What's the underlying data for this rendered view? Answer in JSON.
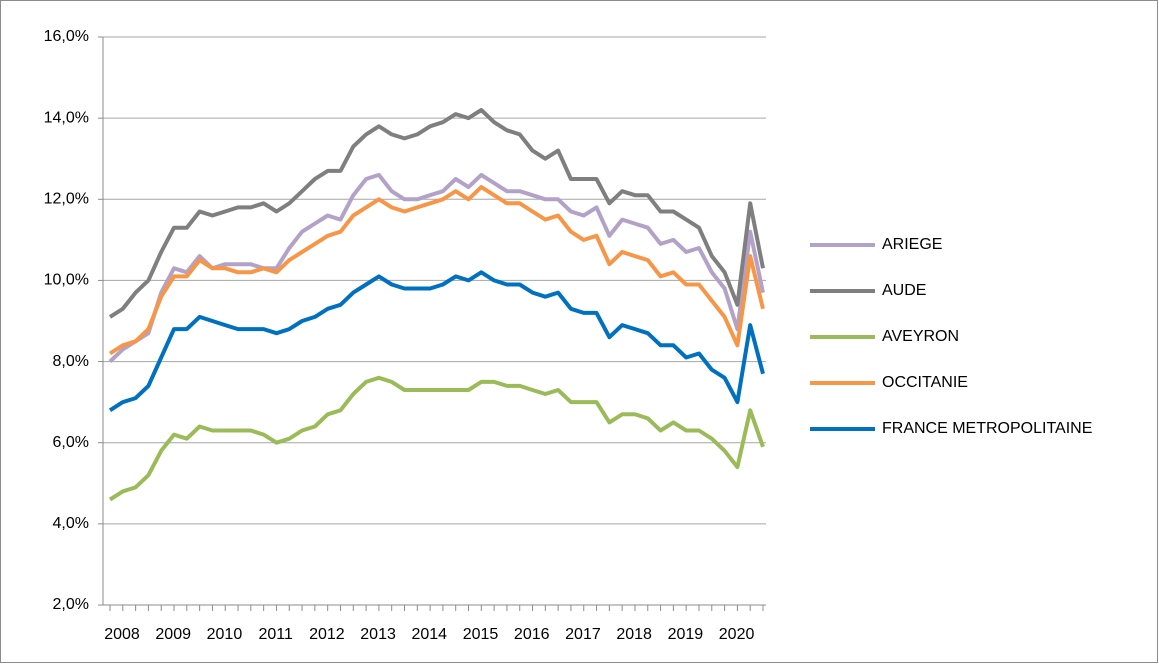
{
  "chart_data": {
    "type": "line",
    "categories": [
      "2008",
      null,
      null,
      null,
      "2009",
      null,
      null,
      null,
      "2010",
      null,
      null,
      null,
      "2011",
      null,
      null,
      null,
      "2012",
      null,
      null,
      null,
      "2013",
      null,
      null,
      null,
      "2014",
      null,
      null,
      null,
      "2015",
      null,
      null,
      null,
      "2016",
      null,
      null,
      null,
      "2017",
      null,
      null,
      null,
      "2018",
      null,
      null,
      null,
      "2019",
      null,
      null,
      null,
      "2020",
      null,
      null,
      null
    ],
    "series": [
      {
        "name": "ARIEGE",
        "color": "#b3a2c7",
        "values": [
          8.0,
          8.3,
          8.5,
          8.7,
          9.7,
          10.3,
          10.2,
          10.6,
          10.3,
          10.4,
          10.4,
          10.4,
          10.3,
          10.3,
          10.8,
          11.2,
          11.4,
          11.6,
          11.5,
          12.1,
          12.5,
          12.6,
          12.2,
          12.0,
          12.0,
          12.1,
          12.2,
          12.5,
          12.3,
          12.6,
          12.4,
          12.2,
          12.2,
          12.1,
          12.0,
          12.0,
          11.7,
          11.6,
          11.8,
          11.1,
          11.5,
          11.4,
          11.3,
          10.9,
          11.0,
          10.7,
          10.8,
          10.2,
          9.8,
          8.8,
          11.2,
          9.7
        ]
      },
      {
        "name": "AUDE",
        "color": "#7f7f7f",
        "values": [
          9.1,
          9.3,
          9.7,
          10.0,
          10.7,
          11.3,
          11.3,
          11.7,
          11.6,
          11.7,
          11.8,
          11.8,
          11.9,
          11.7,
          11.9,
          12.2,
          12.5,
          12.7,
          12.7,
          13.3,
          13.6,
          13.8,
          13.6,
          13.5,
          13.6,
          13.8,
          13.9,
          14.1,
          14.0,
          14.2,
          13.9,
          13.7,
          13.6,
          13.2,
          13.0,
          13.2,
          12.5,
          12.5,
          12.5,
          11.9,
          12.2,
          12.1,
          12.1,
          11.7,
          11.7,
          11.5,
          11.3,
          10.6,
          10.2,
          9.4,
          11.9,
          10.3
        ]
      },
      {
        "name": "AVEYRON",
        "color": "#9bbb59",
        "values": [
          4.6,
          4.8,
          4.9,
          5.2,
          5.8,
          6.2,
          6.1,
          6.4,
          6.3,
          6.3,
          6.3,
          6.3,
          6.2,
          6.0,
          6.1,
          6.3,
          6.4,
          6.7,
          6.8,
          7.2,
          7.5,
          7.6,
          7.5,
          7.3,
          7.3,
          7.3,
          7.3,
          7.3,
          7.3,
          7.5,
          7.5,
          7.4,
          7.4,
          7.3,
          7.2,
          7.3,
          7.0,
          7.0,
          7.0,
          6.5,
          6.7,
          6.7,
          6.6,
          6.3,
          6.5,
          6.3,
          6.3,
          6.1,
          5.8,
          5.4,
          6.8,
          5.9
        ]
      },
      {
        "name": "OCCITANIE",
        "color": "#f79646",
        "values": [
          8.2,
          8.4,
          8.5,
          8.8,
          9.6,
          10.1,
          10.1,
          10.5,
          10.3,
          10.3,
          10.2,
          10.2,
          10.3,
          10.2,
          10.5,
          10.7,
          10.9,
          11.1,
          11.2,
          11.6,
          11.8,
          12.0,
          11.8,
          11.7,
          11.8,
          11.9,
          12.0,
          12.2,
          12.0,
          12.3,
          12.1,
          11.9,
          11.9,
          11.7,
          11.5,
          11.6,
          11.2,
          11.0,
          11.1,
          10.4,
          10.7,
          10.6,
          10.5,
          10.1,
          10.2,
          9.9,
          9.9,
          9.5,
          9.1,
          8.4,
          10.6,
          9.3
        ]
      },
      {
        "name": "FRANCE METROPOLITAINE",
        "color": "#0070c0",
        "values": [
          6.8,
          7.0,
          7.1,
          7.4,
          8.1,
          8.8,
          8.8,
          9.1,
          9.0,
          8.9,
          8.8,
          8.8,
          8.8,
          8.7,
          8.8,
          9.0,
          9.1,
          9.3,
          9.4,
          9.7,
          9.9,
          10.1,
          9.9,
          9.8,
          9.8,
          9.8,
          9.9,
          10.1,
          10.0,
          10.2,
          10.0,
          9.9,
          9.9,
          9.7,
          9.6,
          9.7,
          9.3,
          9.2,
          9.2,
          8.6,
          8.9,
          8.8,
          8.7,
          8.4,
          8.4,
          8.1,
          8.2,
          7.8,
          7.6,
          7.0,
          8.9,
          7.7
        ]
      }
    ],
    "ylim": [
      2,
      16
    ],
    "yticks": [
      {
        "value": 2,
        "label": "2,0%"
      },
      {
        "value": 4,
        "label": "4,0%"
      },
      {
        "value": 6,
        "label": "6,0%"
      },
      {
        "value": 8,
        "label": "8,0%"
      },
      {
        "value": 10,
        "label": "10,0%"
      },
      {
        "value": 12,
        "label": "12,0%"
      },
      {
        "value": 14,
        "label": "14,0%"
      },
      {
        "value": 16,
        "label": "16,0%"
      }
    ],
    "grid": true,
    "legend": "right"
  }
}
